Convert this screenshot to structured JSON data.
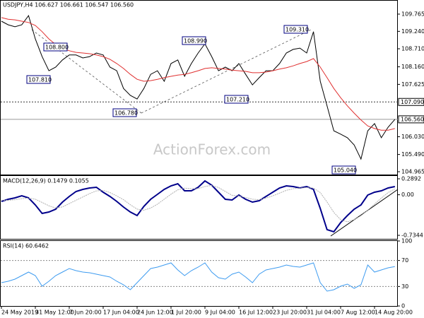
{
  "chart_data": [
    {
      "type": "line",
      "title": "USDJPY,H4 106.627 106.661 106.547 106.560",
      "watermark": "ActionForex.com",
      "categories": [
        "24 May 2019",
        null,
        null,
        null,
        null,
        "31 May 12:00",
        null,
        null,
        null,
        null,
        "7 Jun 20:00",
        null,
        null,
        null,
        null,
        "17 Jun 04:00",
        null,
        null,
        null,
        null,
        "24 Jun 12:00",
        null,
        null,
        null,
        null,
        "1 Jul 20:00",
        null,
        null,
        null,
        null,
        "9 Jul 04:00",
        null,
        null,
        null,
        null,
        "16 Jul 12:00",
        null,
        null,
        null,
        null,
        "23 Jul 20:00",
        null,
        null,
        null,
        null,
        "31 Jul 04:00",
        null,
        null,
        null,
        null,
        "7 Aug 12:00",
        null,
        null,
        null,
        null,
        "14 Aug 20:00",
        null,
        null,
        null
      ],
      "series": [
        {
          "color": "#000000",
          "values": [
            109.55,
            109.44,
            109.38,
            109.44,
            109.72,
            109.01,
            108.47,
            108.04,
            108.15,
            108.37,
            108.52,
            108.52,
            108.43,
            108.47,
            108.58,
            108.52,
            108.15,
            108.04,
            107.5,
            107.29,
            107.18,
            107.5,
            107.93,
            108.04,
            107.72,
            108.26,
            108.37,
            107.87,
            108.26,
            108.58,
            108.86,
            108.47,
            108.04,
            108.15,
            108.04,
            108.26,
            107.93,
            107.61,
            107.83,
            108.04,
            108.04,
            108.26,
            108.58,
            108.69,
            108.73,
            108.58,
            109.23,
            107.72,
            106.97,
            106.21,
            106.11,
            106.0,
            105.78,
            105.35,
            106.21,
            106.43,
            106.0,
            106.32,
            106.56
          ]
        },
        {
          "color": "#e03030",
          "values": [
            109.66,
            109.61,
            109.59,
            109.55,
            109.51,
            109.42,
            109.23,
            109.01,
            108.84,
            108.73,
            108.65,
            108.6,
            108.58,
            108.56,
            108.52,
            108.47,
            108.39,
            108.26,
            108.11,
            107.93,
            107.78,
            107.72,
            107.74,
            107.78,
            107.83,
            107.87,
            107.91,
            107.93,
            107.98,
            108.04,
            108.11,
            108.13,
            108.11,
            108.09,
            108.06,
            108.04,
            108.02,
            107.98,
            107.98,
            108.0,
            108.04,
            108.09,
            108.13,
            108.19,
            108.26,
            108.32,
            108.41,
            108.15,
            107.83,
            107.5,
            107.22,
            106.97,
            106.75,
            106.54,
            106.36,
            106.28,
            106.23,
            106.23,
            106.28
          ]
        }
      ],
      "ylim": [
        104.857,
        110.195
      ],
      "yticks": [
        {
          "value": 109.765,
          "label": "109.765"
        },
        {
          "value": 109.24,
          "label": "109.240"
        },
        {
          "value": 108.71,
          "label": "108.710"
        },
        {
          "value": 108.16,
          "label": "108.160"
        },
        {
          "value": 107.625,
          "label": "107.625"
        },
        {
          "value": 106.03,
          "label": "106.030"
        },
        {
          "value": 105.49,
          "label": "105.490"
        },
        {
          "value": 104.965,
          "label": "104.965"
        }
      ],
      "level": {
        "value": 107.09,
        "label": "107.090"
      },
      "current": {
        "value": 106.56,
        "label": "106.560"
      },
      "annotations": [
        "107.810",
        "108.800",
        "106.780",
        "108.990",
        "107.210",
        "109.310",
        "105.040"
      ]
    },
    {
      "type": "macd",
      "title": "MACD(12,26,9) 0.1479 0.1055",
      "series": [
        {
          "color": "#00008b",
          "values": [
            -0.12,
            -0.082,
            -0.056,
            -0.018,
            -0.056,
            -0.184,
            -0.338,
            -0.312,
            -0.261,
            -0.133,
            -0.031,
            0.059,
            0.097,
            0.123,
            0.136,
            0.046,
            -0.031,
            -0.12,
            -0.223,
            -0.312,
            -0.376,
            -0.21,
            -0.082,
            0.008,
            0.097,
            0.161,
            0.2,
            0.072,
            0.072,
            0.136,
            0.251,
            0.174,
            0.046,
            -0.082,
            -0.095,
            -0.005,
            -0.082,
            -0.133,
            -0.107,
            -0.031,
            0.046,
            0.123,
            0.161,
            0.148,
            0.123,
            0.148,
            0.097,
            -0.248,
            -0.632,
            -0.67,
            -0.504,
            -0.376,
            -0.261,
            -0.184,
            -0.005,
            0.046,
            0.072,
            0.123,
            0.1479
          ]
        },
        {
          "color": "#b0b0b0",
          "values": [
            -0.1,
            -0.1,
            -0.09,
            -0.07,
            -0.06,
            -0.08,
            -0.14,
            -0.2,
            -0.24,
            -0.22,
            -0.16,
            -0.1,
            -0.04,
            0.02,
            0.07,
            0.08,
            0.04,
            -0.02,
            -0.09,
            -0.18,
            -0.26,
            -0.28,
            -0.24,
            -0.17,
            -0.08,
            0.01,
            0.09,
            0.12,
            0.11,
            0.11,
            0.15,
            0.17,
            0.13,
            0.06,
            -0.01,
            -0.02,
            -0.05,
            -0.08,
            -0.09,
            -0.06,
            -0.02,
            0.03,
            0.08,
            0.11,
            0.12,
            0.13,
            0.12,
            0.04,
            -0.13,
            -0.32,
            -0.45,
            -0.49,
            -0.45,
            -0.38,
            -0.28,
            -0.17,
            -0.06,
            0.04,
            0.1055
          ]
        }
      ],
      "ylim": [
        -0.798,
        0.353
      ],
      "yticks": [
        0.2892,
        {
          "value": 0,
          "label": "0.00"
        },
        -0.7344
      ]
    },
    {
      "type": "rsi",
      "title": "RSI(14) 60.6462",
      "series": [
        {
          "color": "#3d9bf0",
          "values": [
            35.9,
            38.0,
            41.3,
            46.7,
            52.2,
            46.7,
            30.4,
            38.0,
            46.7,
            52.2,
            57.6,
            54.3,
            52.2,
            51.1,
            48.9,
            46.7,
            44.6,
            38.0,
            32.6,
            25.0,
            35.9,
            46.7,
            57.6,
            59.8,
            63.0,
            66.3,
            55.4,
            46.7,
            54.3,
            59.8,
            66.3,
            52.2,
            43.5,
            41.3,
            48.9,
            52.2,
            44.6,
            35.9,
            48.9,
            55.4,
            57.6,
            59.8,
            63.0,
            60.9,
            59.8,
            63.0,
            66.3,
            35.9,
            22.8,
            25.0,
            30.4,
            33.7,
            27.2,
            32.6,
            63.0,
            52.2,
            55.4,
            58.7,
            60.6462
          ]
        }
      ],
      "ylim": [
        0,
        100
      ],
      "yticks": [
        100,
        70,
        30,
        0
      ]
    }
  ]
}
